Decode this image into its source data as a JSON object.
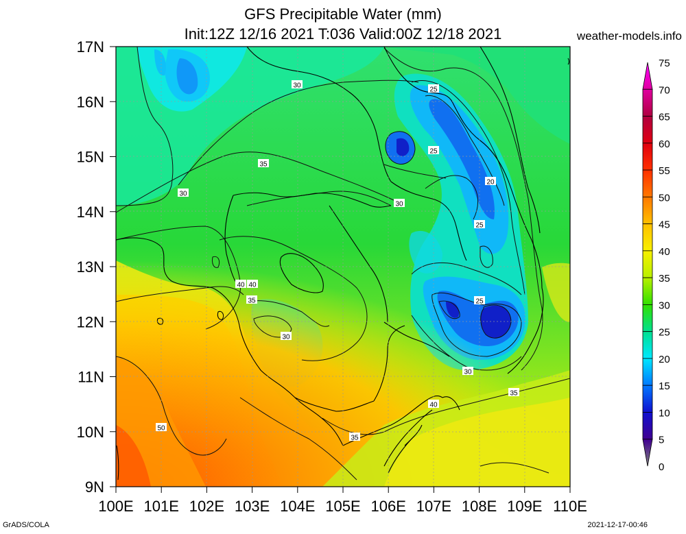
{
  "header": {
    "title_line1": "GFS Precipitable Water (mm)",
    "title_line2": "Init:12Z 12/16 2021 T:036 Valid:00Z 12/18 2021",
    "site": "weather-models.info"
  },
  "footer": {
    "left": "GrADS/COLA",
    "right": "2021-12-17-00:46"
  },
  "map": {
    "lat_labels": [
      "17N",
      "16N",
      "15N",
      "14N",
      "13N",
      "12N",
      "11N",
      "10N",
      "9N"
    ],
    "lon_labels": [
      "100E",
      "101E",
      "102E",
      "103E",
      "104E",
      "105E",
      "106E",
      "107E",
      "108E",
      "109E",
      "110E"
    ],
    "contour_labels": [
      "30",
      "25",
      "25",
      "20",
      "25",
      "30",
      "35",
      "30",
      "40",
      "40",
      "35",
      "30",
      "25",
      "30",
      "35",
      "40",
      "35",
      "50"
    ]
  },
  "colorbar": {
    "labels": [
      "75",
      "70",
      "65",
      "60",
      "55",
      "50",
      "45",
      "40",
      "35",
      "30",
      "25",
      "20",
      "15",
      "10",
      "5",
      "0"
    ],
    "colors": [
      "#ff00ff",
      "#e000a0",
      "#b00040",
      "#e00010",
      "#ff3000",
      "#ff7800",
      "#ffc000",
      "#f8f000",
      "#b8f000",
      "#30e000",
      "#00e090",
      "#00e8ff",
      "#0078ff",
      "#1010d0",
      "#400090",
      "#808080"
    ]
  }
}
